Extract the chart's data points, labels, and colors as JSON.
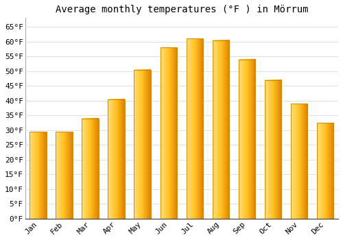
{
  "title": "Average monthly temperatures (°F ) in Mörrum",
  "months": [
    "Jan",
    "Feb",
    "Mar",
    "Apr",
    "May",
    "Jun",
    "Jul",
    "Aug",
    "Sep",
    "Oct",
    "Nov",
    "Dec"
  ],
  "values": [
    29.5,
    29.5,
    34.0,
    40.5,
    50.5,
    58.0,
    61.0,
    60.5,
    54.0,
    47.0,
    39.0,
    32.5
  ],
  "bar_color_mid": "#FFC020",
  "bar_color_light": "#FFE080",
  "bar_color_dark": "#E08000",
  "bar_color_edge": "#CC8800",
  "background_color": "#FFFFFF",
  "grid_color": "#E0E0E0",
  "ylim": [
    0,
    68
  ],
  "yticks": [
    0,
    5,
    10,
    15,
    20,
    25,
    30,
    35,
    40,
    45,
    50,
    55,
    60,
    65
  ],
  "ytick_labels": [
    "0°F",
    "5°F",
    "10°F",
    "15°F",
    "20°F",
    "25°F",
    "30°F",
    "35°F",
    "40°F",
    "45°F",
    "50°F",
    "55°F",
    "60°F",
    "65°F"
  ],
  "title_fontsize": 10,
  "tick_fontsize": 8,
  "font_family": "monospace",
  "bar_width": 0.65
}
